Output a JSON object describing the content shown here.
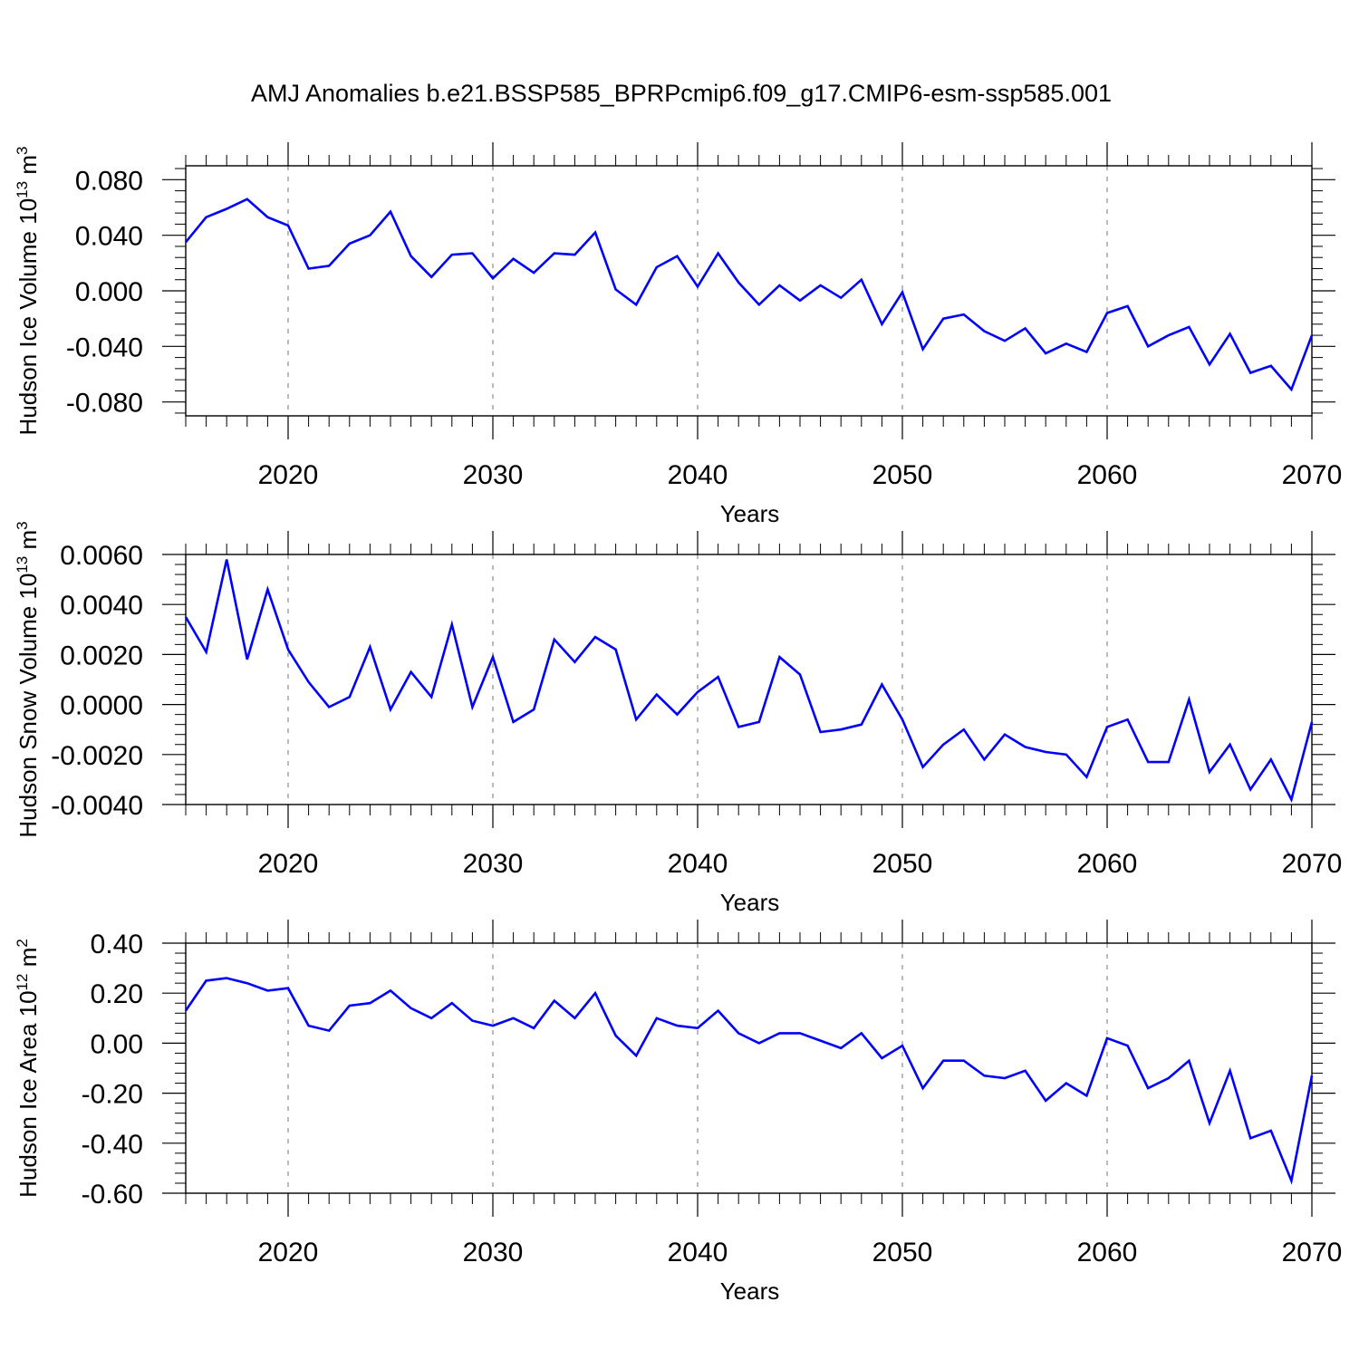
{
  "title": "AMJ Anomalies b.e21.BSSP585_BPRPcmip6.f09_g17.CMIP6-esm-ssp585.001",
  "colors": {
    "series": "#0000ff",
    "frame": "#000000",
    "grid": "#8c8c8c"
  },
  "chart_data": [
    {
      "type": "line",
      "ylabel_base": "Hudson Ice Volume 10",
      "ylabel_exp": "13",
      "ylabel_unit": " m",
      "ylabel_unit_exp": "3",
      "xlabel": "Years",
      "xlim": [
        2015,
        2070
      ],
      "ylim": [
        -0.09,
        0.09
      ],
      "xticks": [
        2020,
        2030,
        2040,
        2050,
        2060,
        2070
      ],
      "yticks": [
        -0.08,
        -0.04,
        0.0,
        0.04,
        0.08
      ],
      "ytick_labels": [
        "-0.080",
        "-0.040",
        "0.000",
        "0.040",
        "0.080"
      ],
      "grid": "vertical dashed at major x ticks",
      "x": [
        2015,
        2016,
        2017,
        2018,
        2019,
        2020,
        2021,
        2022,
        2023,
        2024,
        2025,
        2026,
        2027,
        2028,
        2029,
        2030,
        2031,
        2032,
        2033,
        2034,
        2035,
        2036,
        2037,
        2038,
        2039,
        2040,
        2041,
        2042,
        2043,
        2044,
        2045,
        2046,
        2047,
        2048,
        2049,
        2050,
        2051,
        2052,
        2053,
        2054,
        2055,
        2056,
        2057,
        2058,
        2059,
        2060,
        2061,
        2062,
        2063,
        2064,
        2065,
        2066,
        2067,
        2068,
        2069,
        2070
      ],
      "values": [
        0.035,
        0.053,
        0.059,
        0.066,
        0.053,
        0.047,
        0.016,
        0.018,
        0.034,
        0.04,
        0.057,
        0.025,
        0.01,
        0.026,
        0.027,
        0.009,
        0.023,
        0.013,
        0.027,
        0.026,
        0.042,
        0.001,
        -0.01,
        0.017,
        0.025,
        0.003,
        0.027,
        0.006,
        -0.01,
        0.004,
        -0.007,
        0.004,
        -0.005,
        0.008,
        -0.024,
        -0.001,
        -0.042,
        -0.02,
        -0.017,
        -0.029,
        -0.036,
        -0.027,
        -0.045,
        -0.038,
        -0.044,
        -0.016,
        -0.011,
        -0.04,
        -0.032,
        -0.026,
        -0.053,
        -0.031,
        -0.059,
        -0.054,
        -0.071,
        -0.032
      ]
    },
    {
      "type": "line",
      "ylabel_base": "Hudson Snow Volume 10",
      "ylabel_exp": "13",
      "ylabel_unit": " m",
      "ylabel_unit_exp": "3",
      "xlabel": "Years",
      "xlim": [
        2015,
        2070
      ],
      "ylim": [
        -0.004,
        0.006
      ],
      "xticks": [
        2020,
        2030,
        2040,
        2050,
        2060,
        2070
      ],
      "yticks": [
        -0.004,
        -0.002,
        0.0,
        0.002,
        0.004,
        0.006
      ],
      "ytick_labels": [
        "-0.0040",
        "-0.0020",
        "0.0000",
        "0.0020",
        "0.0040",
        "0.0060"
      ],
      "grid": "vertical dashed at major x ticks",
      "x": [
        2015,
        2016,
        2017,
        2018,
        2019,
        2020,
        2021,
        2022,
        2023,
        2024,
        2025,
        2026,
        2027,
        2028,
        2029,
        2030,
        2031,
        2032,
        2033,
        2034,
        2035,
        2036,
        2037,
        2038,
        2039,
        2040,
        2041,
        2042,
        2043,
        2044,
        2045,
        2046,
        2047,
        2048,
        2049,
        2050,
        2051,
        2052,
        2053,
        2054,
        2055,
        2056,
        2057,
        2058,
        2059,
        2060,
        2061,
        2062,
        2063,
        2064,
        2065,
        2066,
        2067,
        2068,
        2069,
        2070
      ],
      "values": [
        0.0035,
        0.0021,
        0.0058,
        0.0018,
        0.0046,
        0.0022,
        0.0009,
        -0.0001,
        0.0003,
        0.0023,
        -0.0002,
        0.0013,
        0.0003,
        0.0032,
        -0.0001,
        0.0019,
        -0.0007,
        -0.0002,
        0.0026,
        0.0017,
        0.0027,
        0.0022,
        -0.0006,
        0.0004,
        -0.0004,
        0.0005,
        0.0011,
        -0.0009,
        -0.0007,
        0.0019,
        0.0012,
        -0.0011,
        -0.001,
        -0.0008,
        0.0008,
        -0.0006,
        -0.0025,
        -0.0016,
        -0.001,
        -0.0022,
        -0.0012,
        -0.0017,
        -0.0019,
        -0.002,
        -0.0029,
        -0.0009,
        -0.0006,
        -0.0023,
        -0.0023,
        0.0002,
        -0.0027,
        -0.0016,
        -0.0034,
        -0.0022,
        -0.0038,
        -0.0007
      ]
    },
    {
      "type": "line",
      "ylabel_base": "Hudson Ice Area 10",
      "ylabel_exp": "12",
      "ylabel_unit": " m",
      "ylabel_unit_exp": "2",
      "xlabel": "Years",
      "xlim": [
        2015,
        2070
      ],
      "ylim": [
        -0.6,
        0.4
      ],
      "xticks": [
        2020,
        2030,
        2040,
        2050,
        2060,
        2070
      ],
      "yticks": [
        -0.6,
        -0.4,
        -0.2,
        0.0,
        0.2,
        0.4
      ],
      "ytick_labels": [
        "-0.60",
        "-0.40",
        "-0.20",
        "0.00",
        "0.20",
        "0.40"
      ],
      "grid": "vertical dashed at major x ticks",
      "x": [
        2015,
        2016,
        2017,
        2018,
        2019,
        2020,
        2021,
        2022,
        2023,
        2024,
        2025,
        2026,
        2027,
        2028,
        2029,
        2030,
        2031,
        2032,
        2033,
        2034,
        2035,
        2036,
        2037,
        2038,
        2039,
        2040,
        2041,
        2042,
        2043,
        2044,
        2045,
        2046,
        2047,
        2048,
        2049,
        2050,
        2051,
        2052,
        2053,
        2054,
        2055,
        2056,
        2057,
        2058,
        2059,
        2060,
        2061,
        2062,
        2063,
        2064,
        2065,
        2066,
        2067,
        2068,
        2069,
        2070
      ],
      "values": [
        0.13,
        0.25,
        0.26,
        0.24,
        0.21,
        0.22,
        0.07,
        0.05,
        0.15,
        0.16,
        0.21,
        0.14,
        0.1,
        0.16,
        0.09,
        0.07,
        0.1,
        0.06,
        0.17,
        0.1,
        0.2,
        0.03,
        -0.05,
        0.1,
        0.07,
        0.06,
        0.13,
        0.04,
        0.0,
        0.04,
        0.04,
        0.01,
        -0.02,
        0.04,
        -0.06,
        -0.01,
        -0.18,
        -0.07,
        -0.07,
        -0.13,
        -0.14,
        -0.11,
        -0.23,
        -0.16,
        -0.21,
        0.02,
        -0.01,
        -0.18,
        -0.14,
        -0.07,
        -0.32,
        -0.11,
        -0.38,
        -0.35,
        -0.55,
        -0.13
      ]
    }
  ]
}
